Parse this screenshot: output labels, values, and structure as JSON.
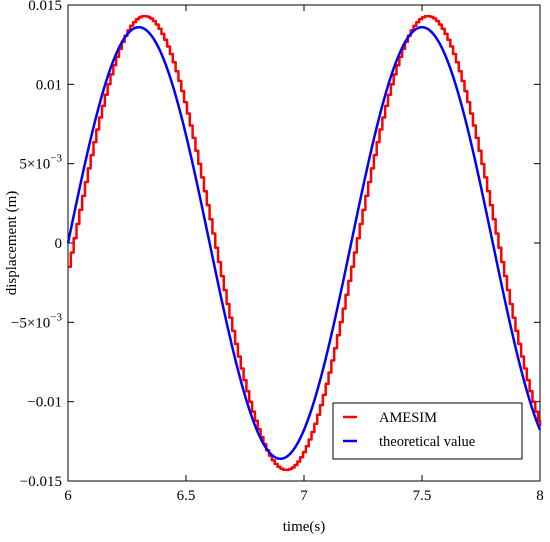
{
  "chart_data": {
    "type": "line",
    "title": "",
    "xlabel": "time(s)",
    "ylabel": "displacement (m)",
    "xlim": [
      6,
      8
    ],
    "ylim": [
      -0.015,
      0.015
    ],
    "grid": false,
    "legend_position": "lower-right",
    "x_ticks": [
      {
        "value": 6,
        "label": "6"
      },
      {
        "value": 6.5,
        "label": "6.5"
      },
      {
        "value": 7,
        "label": "7"
      },
      {
        "value": 7.5,
        "label": "7.5"
      },
      {
        "value": 8,
        "label": "8"
      }
    ],
    "y_ticks": [
      {
        "value": 0.015,
        "label": "0.015",
        "sup": ""
      },
      {
        "value": 0.01,
        "label": "0.01",
        "sup": ""
      },
      {
        "value": 0.005,
        "label": "5×10",
        "sup": "−3"
      },
      {
        "value": 0,
        "label": "0",
        "sup": ""
      },
      {
        "value": -0.005,
        "label": "−5×10",
        "sup": "−3"
      },
      {
        "value": -0.01,
        "label": "−0.01",
        "sup": ""
      },
      {
        "value": -0.015,
        "label": "−0.015",
        "sup": ""
      }
    ],
    "series": [
      {
        "name": "AMESIM",
        "color": "#ff0000",
        "amplitude": 0.0143,
        "period": 1.2,
        "phase_shift": 0.02,
        "staircase": true,
        "x": [
          6.0,
          6.1,
          6.2,
          6.33,
          6.5,
          6.63,
          6.8,
          6.93,
          7.1,
          7.23,
          7.4,
          7.53,
          7.7,
          7.83,
          8.0
        ],
        "y": [
          -0.0015,
          0.0066,
          0.0123,
          0.0143,
          0.0106,
          0.0,
          -0.0106,
          -0.0143,
          -0.0079,
          0.0,
          0.0106,
          0.0143,
          0.0079,
          0.0,
          -0.0106
        ]
      },
      {
        "name": "theoretical value",
        "color": "#0000ff",
        "amplitude": 0.0136,
        "period": 1.2,
        "phase_shift": 0.0,
        "staircase": false,
        "x": [
          6.0,
          6.1,
          6.2,
          6.3,
          6.5,
          6.6,
          6.8,
          6.9,
          7.1,
          7.2,
          7.4,
          7.5,
          7.7,
          7.8,
          8.0
        ],
        "y": [
          0.0,
          0.0068,
          0.0118,
          0.0136,
          0.0068,
          0.0,
          -0.0118,
          -0.0136,
          -0.0068,
          0.0,
          0.0118,
          0.0136,
          0.0068,
          0.0,
          -0.0118
        ]
      }
    ]
  }
}
